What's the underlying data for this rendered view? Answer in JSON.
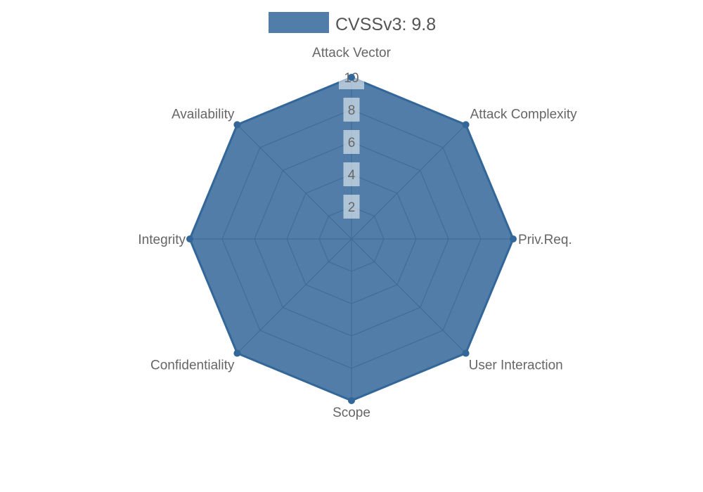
{
  "legend": {
    "label": "CVSSv3: 9.8",
    "swatch_color": "#336699"
  },
  "chart_data": {
    "type": "radar",
    "title": "CVSSv3: 9.8",
    "categories": [
      "Attack Vector",
      "Attack Complexity",
      "Priv.Req.",
      "User Interaction",
      "Scope",
      "Confidentiality",
      "Integrity",
      "Availability"
    ],
    "series": [
      {
        "name": "CVSSv3: 9.8",
        "color": "#336699",
        "values": [
          10,
          10,
          10,
          10,
          10,
          10,
          10,
          10
        ]
      }
    ],
    "ticks": [
      2,
      4,
      6,
      8,
      10
    ],
    "range": [
      0,
      10
    ],
    "grid": true,
    "legend_position": "top",
    "colors": {
      "series_fill": "#336699",
      "series_stroke": "#336699",
      "grid_line": "#8a8a8a",
      "axis_label": "#666666",
      "tick_label": "#666666",
      "tick_label_bg": "#ffffff",
      "legend_text": "#545454",
      "background": "#ffffff"
    }
  }
}
